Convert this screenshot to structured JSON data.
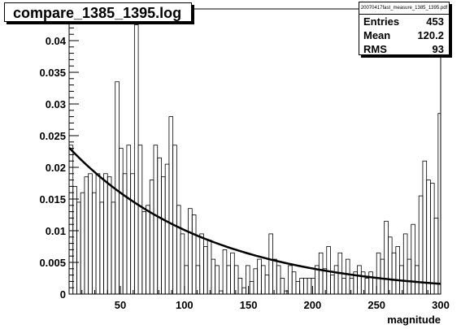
{
  "stats": {
    "header": "20070417fast_measure_1385_1395.pdf",
    "rows": [
      {
        "label": "Entries",
        "value": "453"
      },
      {
        "label": "Mean",
        "value": "120.2"
      },
      {
        "label": "RMS",
        "value": "93"
      }
    ]
  },
  "chart_data": {
    "type": "histogram",
    "title": "compare_1385_1395.log",
    "xlabel": "magnitude",
    "ylabel": "",
    "xlim": [
      10,
      300
    ],
    "ylim": [
      0,
      0.045
    ],
    "bin_width": 3,
    "x_ticks": [
      50,
      100,
      150,
      200,
      250,
      300
    ],
    "x_tick_labels": [
      "50",
      "100",
      "150",
      "200",
      "250",
      "300"
    ],
    "y_ticks": [
      0,
      0.005,
      0.01,
      0.015,
      0.02,
      0.025,
      0.03,
      0.035,
      0.04
    ],
    "y_tick_labels": [
      "0",
      "0.005",
      "0.01",
      "0.015",
      "0.02",
      "0.025",
      "0.03",
      "0.035",
      "0.04"
    ],
    "bins": [
      [
        10,
        0.0235
      ],
      [
        13,
        0.017
      ],
      [
        16,
        0.0145
      ],
      [
        19,
        0.016
      ],
      [
        22,
        0.0185
      ],
      [
        25,
        0.019
      ],
      [
        28,
        0.016
      ],
      [
        31,
        0.019
      ],
      [
        34,
        0.0145
      ],
      [
        37,
        0.019
      ],
      [
        40,
        0.0185
      ],
      [
        43,
        0.0145
      ],
      [
        46,
        0.0335
      ],
      [
        49,
        0.023
      ],
      [
        52,
        0.019
      ],
      [
        55,
        0.0235
      ],
      [
        58,
        0.019
      ],
      [
        61,
        0.0425
      ],
      [
        64,
        0.0235
      ],
      [
        67,
        0.013
      ],
      [
        70,
        0.014
      ],
      [
        73,
        0.018
      ],
      [
        76,
        0.0235
      ],
      [
        79,
        0.0215
      ],
      [
        82,
        0.0185
      ],
      [
        85,
        0.0205
      ],
      [
        88,
        0.028
      ],
      [
        91,
        0.0235
      ],
      [
        94,
        0.014
      ],
      [
        97,
        0.0095
      ],
      [
        100,
        0.0045
      ],
      [
        103,
        0.0135
      ],
      [
        106,
        0.0125
      ],
      [
        109,
        0.0045
      ],
      [
        112,
        0.0095
      ],
      [
        115,
        0.0075
      ],
      [
        118,
        0.0085
      ],
      [
        121,
        0.0055
      ],
      [
        124,
        0.0045
      ],
      [
        127,
        0.0005
      ],
      [
        130,
        0.007
      ],
      [
        133,
        0.0045
      ],
      [
        136,
        0.0065
      ],
      [
        139,
        0.0045
      ],
      [
        142,
        0.0025
      ],
      [
        145,
        0.001
      ],
      [
        148,
        0.0045
      ],
      [
        151,
        0.002
      ],
      [
        154,
        0.004
      ],
      [
        157,
        0.0055
      ],
      [
        160,
        0.0045
      ],
      [
        163,
        0.003
      ],
      [
        166,
        0.0095
      ],
      [
        169,
        0.0055
      ],
      [
        172,
        0.0045
      ],
      [
        175,
        0.0025
      ],
      [
        178,
        0.0005
      ],
      [
        181,
        0.0045
      ],
      [
        184,
        0.0035
      ],
      [
        187,
        0.002
      ],
      [
        190,
        0.0025
      ],
      [
        193,
        0.0025
      ],
      [
        196,
        0.0025
      ],
      [
        199,
        0.0025
      ],
      [
        202,
        0.0045
      ],
      [
        205,
        0.0065
      ],
      [
        208,
        0.004
      ],
      [
        211,
        0.0075
      ],
      [
        214,
        0.003
      ],
      [
        217,
        0.0045
      ],
      [
        220,
        0.0065
      ],
      [
        223,
        0.0025
      ],
      [
        226,
        0.0055
      ],
      [
        229,
        0.0025
      ],
      [
        232,
        0.0035
      ],
      [
        235,
        0.0045
      ],
      [
        238,
        0.0035
      ],
      [
        241,
        0.0025
      ],
      [
        244,
        0.0035
      ],
      [
        247,
        0.0025
      ],
      [
        250,
        0.0065
      ],
      [
        253,
        0.0055
      ],
      [
        256,
        0.0115
      ],
      [
        259,
        0.009
      ],
      [
        262,
        0.0065
      ],
      [
        265,
        0.0075
      ],
      [
        268,
        0.0045
      ],
      [
        271,
        0.0095
      ],
      [
        274,
        0.0055
      ],
      [
        277,
        0.011
      ],
      [
        280,
        0.0045
      ],
      [
        283,
        0.0155
      ],
      [
        286,
        0.021
      ],
      [
        289,
        0.018
      ],
      [
        292,
        0.0175
      ],
      [
        295,
        0.012
      ],
      [
        298,
        0.0285
      ]
    ],
    "fit": {
      "type": "exponential",
      "amplitude": 0.0231,
      "slope": -0.00918,
      "x_range": [
        10,
        300
      ]
    }
  }
}
